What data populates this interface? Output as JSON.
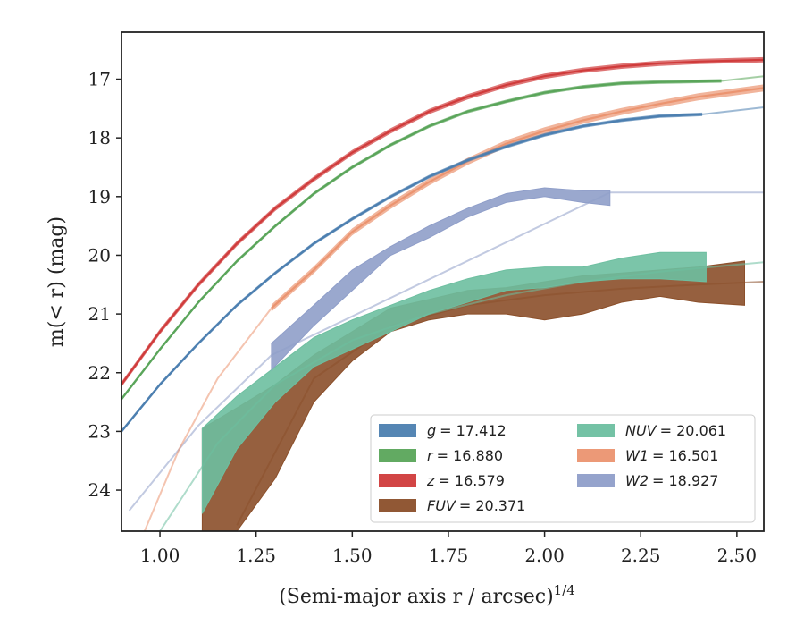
{
  "chart_data": {
    "type": "line",
    "xlabel": "(Semi-major axis r / arcsec)",
    "xlabel_superscript": "1/4",
    "ylabel": "m(< r) (mag)",
    "xlim": [
      0.9,
      2.57
    ],
    "ylim": [
      24.7,
      16.2
    ],
    "y_inverted": true,
    "grid": false,
    "legend_position": "lower-right",
    "x_ticks": [
      "1.00",
      "1.25",
      "1.50",
      "1.75",
      "2.00",
      "2.25",
      "2.50"
    ],
    "y_ticks": [
      "17",
      "18",
      "19",
      "20",
      "21",
      "22",
      "23",
      "24"
    ],
    "series": [
      {
        "name": "g = 17.412",
        "legend_var": "g",
        "legend_value": "= 17.412",
        "color": "#4c7fb0",
        "kind": "line",
        "band_width": 0.06,
        "x": [
          0.9,
          1.0,
          1.1,
          1.2,
          1.3,
          1.4,
          1.5,
          1.6,
          1.7,
          1.8,
          1.9,
          2.0,
          2.1,
          2.2,
          2.3,
          2.41
        ],
        "y": [
          23.0,
          22.2,
          21.5,
          20.85,
          20.3,
          19.8,
          19.38,
          19.0,
          18.66,
          18.38,
          18.15,
          17.95,
          17.8,
          17.7,
          17.63,
          17.6
        ],
        "model_x": [
          2.41,
          2.57
        ],
        "model_y": [
          17.6,
          17.48
        ]
      },
      {
        "name": "r = 16.880",
        "legend_var": "r",
        "legend_value": "= 16.880",
        "color": "#5aa55a",
        "kind": "line",
        "band_width": 0.06,
        "x": [
          0.9,
          1.0,
          1.1,
          1.2,
          1.3,
          1.4,
          1.5,
          1.6,
          1.7,
          1.8,
          1.9,
          2.0,
          2.1,
          2.2,
          2.3,
          2.46
        ],
        "y": [
          22.45,
          21.6,
          20.8,
          20.1,
          19.5,
          18.95,
          18.5,
          18.12,
          17.8,
          17.55,
          17.38,
          17.23,
          17.13,
          17.07,
          17.05,
          17.03
        ],
        "model_x": [
          2.46,
          2.57
        ],
        "model_y": [
          17.03,
          16.95
        ]
      },
      {
        "name": "z = 16.579",
        "legend_var": "z",
        "legend_value": "= 16.579",
        "color": "#d03b3b",
        "kind": "line",
        "band_width": 0.09,
        "x": [
          0.9,
          1.0,
          1.1,
          1.2,
          1.3,
          1.4,
          1.5,
          1.6,
          1.7,
          1.8,
          1.9,
          2.0,
          2.1,
          2.2,
          2.3,
          2.4,
          2.57
        ],
        "y": [
          22.2,
          21.3,
          20.5,
          19.8,
          19.2,
          18.7,
          18.25,
          17.88,
          17.55,
          17.3,
          17.1,
          16.95,
          16.85,
          16.78,
          16.73,
          16.7,
          16.67
        ],
        "model_x": [],
        "model_y": []
      },
      {
        "name": "FUV = 20.371",
        "legend_var": "FUV",
        "legend_value": "= 20.371",
        "color": "#8b4f2a",
        "kind": "band",
        "x": [
          1.11,
          1.2,
          1.3,
          1.4,
          1.5,
          1.6,
          1.7,
          1.8,
          1.9,
          2.0,
          2.1,
          2.2,
          2.3,
          2.4,
          2.52
        ],
        "y_low": [
          24.7,
          24.7,
          23.8,
          22.5,
          21.8,
          21.3,
          21.1,
          21.0,
          21.0,
          21.1,
          21.0,
          20.8,
          20.7,
          20.8,
          20.85
        ],
        "y_high": [
          22.95,
          22.6,
          22.2,
          21.7,
          21.3,
          20.9,
          20.75,
          20.6,
          20.55,
          20.45,
          20.35,
          20.3,
          20.25,
          20.2,
          20.1
        ],
        "model_x": [
          1.2,
          1.4,
          1.6,
          1.8,
          2.0,
          2.2,
          2.4,
          2.57
        ],
        "model_y": [
          24.6,
          22.1,
          21.2,
          20.85,
          20.68,
          20.57,
          20.5,
          20.45
        ]
      },
      {
        "name": "NUV = 20.061",
        "legend_var": "NUV",
        "legend_value": "= 20.061",
        "color": "#6dbfa0",
        "kind": "band",
        "x": [
          1.11,
          1.2,
          1.3,
          1.4,
          1.5,
          1.6,
          1.7,
          1.8,
          1.9,
          2.0,
          2.1,
          2.2,
          2.3,
          2.42
        ],
        "y_low": [
          24.4,
          23.3,
          22.5,
          21.9,
          21.6,
          21.3,
          21.0,
          20.8,
          20.6,
          20.55,
          20.45,
          20.4,
          20.4,
          20.45
        ],
        "y_high": [
          22.95,
          22.4,
          21.9,
          21.4,
          21.1,
          20.85,
          20.6,
          20.4,
          20.25,
          20.2,
          20.2,
          20.05,
          19.95,
          19.95
        ],
        "model_x": [
          1.0,
          1.15,
          1.3,
          1.5,
          1.7,
          1.9,
          2.1,
          2.3,
          2.57
        ],
        "model_y": [
          24.7,
          23.2,
          22.2,
          21.45,
          21.0,
          20.68,
          20.45,
          20.28,
          20.12
        ]
      },
      {
        "name": "W1 = 16.501",
        "legend_var": "W1",
        "legend_value": "= 16.501",
        "color": "#eb9470",
        "kind": "line",
        "band_width": 0.12,
        "x": [
          1.29,
          1.4,
          1.5,
          1.6,
          1.7,
          1.8,
          1.9,
          2.0,
          2.1,
          2.2,
          2.3,
          2.4,
          2.57
        ],
        "y": [
          20.9,
          20.25,
          19.6,
          19.15,
          18.75,
          18.4,
          18.1,
          17.88,
          17.7,
          17.55,
          17.42,
          17.3,
          17.15
        ],
        "model_x": [
          0.96,
          1.05,
          1.15,
          1.29
        ],
        "model_y": [
          24.7,
          23.3,
          22.1,
          20.9
        ]
      },
      {
        "name": "W2 = 18.927",
        "legend_var": "W2",
        "legend_value": "= 18.927",
        "color": "#8f9ec9",
        "kind": "band",
        "x": [
          1.29,
          1.4,
          1.5,
          1.6,
          1.7,
          1.8,
          1.9,
          2.0,
          2.1,
          2.17
        ],
        "y_low": [
          21.95,
          21.2,
          20.6,
          20.0,
          19.7,
          19.35,
          19.1,
          19.0,
          19.1,
          19.15
        ],
        "y_high": [
          21.5,
          20.85,
          20.25,
          19.85,
          19.5,
          19.2,
          18.95,
          18.85,
          18.9,
          18.9
        ],
        "model_x": [
          0.92,
          1.1,
          1.29,
          2.17,
          2.57
        ],
        "model_y": [
          24.35,
          22.9,
          21.7,
          18.93,
          18.93
        ]
      }
    ]
  }
}
